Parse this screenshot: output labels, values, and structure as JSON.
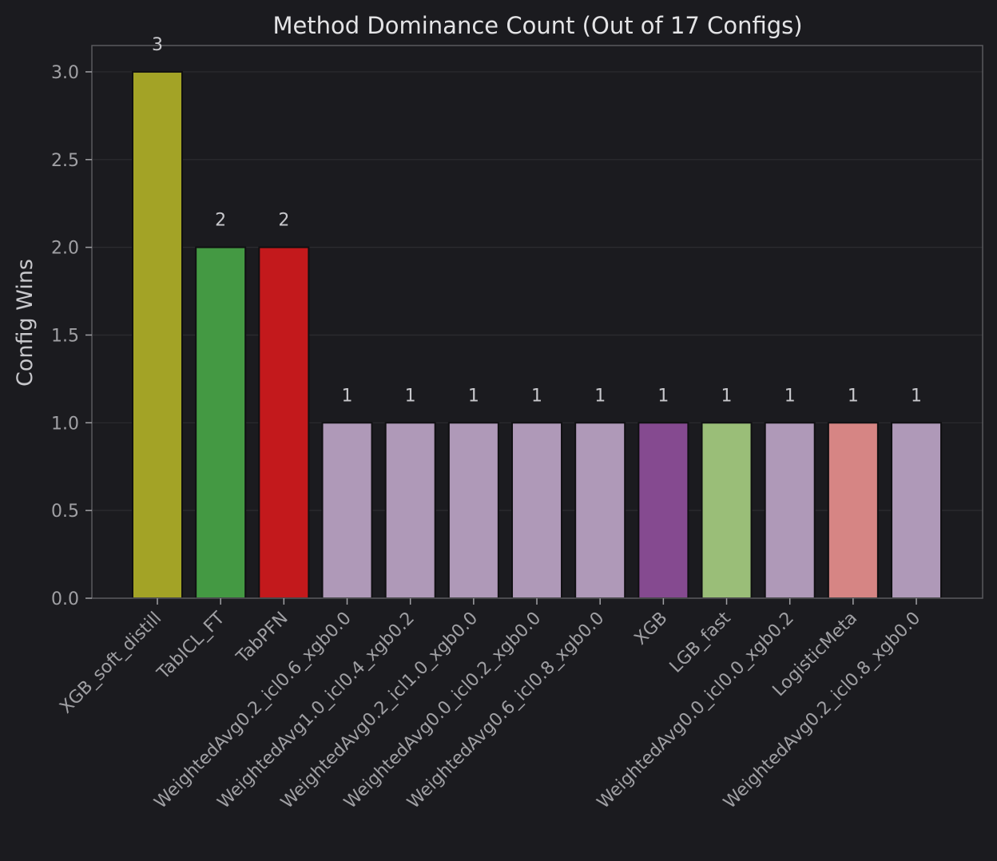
{
  "chart_data": {
    "type": "bar",
    "title": "Method Dominance Count (Out of 17 Configs)",
    "xlabel": "",
    "ylabel": "Config Wins",
    "ylim": [
      0,
      3.15
    ],
    "yticks": [
      "0.0",
      "0.5",
      "1.0",
      "1.5",
      "2.0",
      "2.5",
      "3.0"
    ],
    "grid": true,
    "categories": [
      "XGB_soft_distill",
      "TabICL_FT",
      "TabPFN",
      "WeightedAvg0.2_icl0.6_xgb0.0",
      "WeightedAvg1.0_icl0.4_xgb0.2",
      "WeightedAvg0.2_icl1.0_xgb0.0",
      "WeightedAvg0.0_icl0.2_xgb0.0",
      "WeightedAvg0.6_icl0.8_xgb0.0",
      "XGB",
      "LGB_fast",
      "WeightedAvg0.0_icl0.0_xgb0.2",
      "LogisticMeta",
      "WeightedAvg0.2_icl0.8_xgb0.0"
    ],
    "values": [
      3,
      2,
      2,
      1,
      1,
      1,
      1,
      1,
      1,
      1,
      1,
      1,
      1
    ],
    "data_labels": [
      "3",
      "2",
      "2",
      "1",
      "1",
      "1",
      "1",
      "1",
      "1",
      "1",
      "1",
      "1",
      "1"
    ],
    "colors": [
      "#a3a326",
      "#449943",
      "#c3191c",
      "#af99b8",
      "#af99b8",
      "#af99b8",
      "#af99b8",
      "#af99b8",
      "#854a90",
      "#9abe78",
      "#af99b8",
      "#d68584",
      "#af99b8"
    ]
  },
  "theme": {
    "background": "#1b1b1f",
    "axis_color": "#5a5a5e",
    "grid_color": "#2c2c31",
    "tick_text": "#a0a0a4",
    "title_text": "#e4e4e6",
    "label_text": "#c8c8cc",
    "bar_edge": "#101012"
  }
}
